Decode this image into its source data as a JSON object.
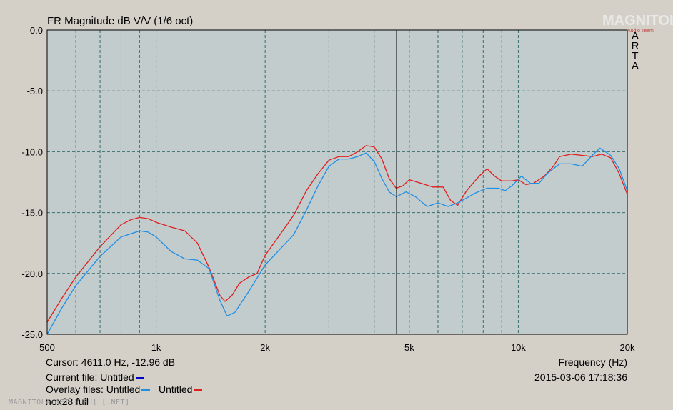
{
  "title": "FR Magnitude dB V/V (1/6 oct)",
  "side_label": [
    "A",
    "R",
    "T",
    "A"
  ],
  "logo": "MAGNITOLA",
  "logo_sub": "Audio Team",
  "watermark": "MAGNITOLA.NET [.RU] [.NET]",
  "info": {
    "cursor": "Cursor: 4611.0 Hz, -12.96 dB",
    "current_file_label": "Current file: Untitled",
    "overlay_label": "Overlay files: Untitled",
    "overlay_second": "Untitled",
    "file_note": "nox28 full",
    "freq_label": "Frequency (Hz)",
    "timestamp": "2015-03-06  17:18:36"
  },
  "colors": {
    "plot_bg": "#c2cccc",
    "grid": "#3a6e6e",
    "current_swatch": "#0000cc",
    "series_blue": "#1f8ee6",
    "series_red": "#e01e1e"
  },
  "chart_data": {
    "type": "line",
    "x_scale": "log",
    "xlim": [
      500,
      20000
    ],
    "ylim": [
      -25,
      0
    ],
    "xlabel": "Frequency (Hz)",
    "ylabel": "",
    "y_ticks": [
      "0.0",
      "-5.0",
      "-10.0",
      "-15.0",
      "-20.0",
      "-25.0"
    ],
    "x_ticks": [
      {
        "value": 500,
        "label": "500"
      },
      {
        "value": 1000,
        "label": "1k"
      },
      {
        "value": 2000,
        "label": "2k"
      },
      {
        "value": 5000,
        "label": "5k"
      },
      {
        "value": 10000,
        "label": "10k"
      },
      {
        "value": 20000,
        "label": "20k"
      }
    ],
    "cursor_x": 4611,
    "series": [
      {
        "color": "#e01e1e",
        "points": [
          [
            500,
            -24.0
          ],
          [
            550,
            -22.0
          ],
          [
            600,
            -20.3
          ],
          [
            700,
            -17.8
          ],
          [
            800,
            -16.0
          ],
          [
            850,
            -15.6
          ],
          [
            900,
            -15.4
          ],
          [
            950,
            -15.5
          ],
          [
            1000,
            -15.8
          ],
          [
            1100,
            -16.2
          ],
          [
            1200,
            -16.5
          ],
          [
            1300,
            -17.5
          ],
          [
            1400,
            -19.5
          ],
          [
            1500,
            -21.8
          ],
          [
            1550,
            -22.3
          ],
          [
            1620,
            -21.8
          ],
          [
            1700,
            -20.8
          ],
          [
            1800,
            -20.3
          ],
          [
            1900,
            -20.0
          ],
          [
            2000,
            -18.5
          ],
          [
            2200,
            -16.8
          ],
          [
            2400,
            -15.2
          ],
          [
            2600,
            -13.2
          ],
          [
            2800,
            -11.8
          ],
          [
            3000,
            -10.7
          ],
          [
            3200,
            -10.4
          ],
          [
            3400,
            -10.4
          ],
          [
            3600,
            -10.0
          ],
          [
            3800,
            -9.5
          ],
          [
            4000,
            -9.6
          ],
          [
            4200,
            -10.6
          ],
          [
            4400,
            -12.2
          ],
          [
            4600,
            -13.0
          ],
          [
            4800,
            -12.8
          ],
          [
            5000,
            -12.3
          ],
          [
            5400,
            -12.6
          ],
          [
            5800,
            -12.9
          ],
          [
            6200,
            -12.9
          ],
          [
            6500,
            -14.0
          ],
          [
            6800,
            -14.4
          ],
          [
            7200,
            -13.2
          ],
          [
            7800,
            -12.0
          ],
          [
            8200,
            -11.4
          ],
          [
            8600,
            -12.0
          ],
          [
            9000,
            -12.4
          ],
          [
            9600,
            -12.4
          ],
          [
            10000,
            -12.3
          ],
          [
            10500,
            -12.7
          ],
          [
            11000,
            -12.6
          ],
          [
            11800,
            -12.0
          ],
          [
            12500,
            -11.2
          ],
          [
            13000,
            -10.4
          ],
          [
            14000,
            -10.2
          ],
          [
            15000,
            -10.3
          ],
          [
            16000,
            -10.4
          ],
          [
            17000,
            -10.2
          ],
          [
            18000,
            -10.5
          ],
          [
            19000,
            -11.8
          ],
          [
            20000,
            -13.5
          ]
        ]
      },
      {
        "color": "#1f8ee6",
        "points": [
          [
            500,
            -25.0
          ],
          [
            550,
            -22.8
          ],
          [
            600,
            -21.0
          ],
          [
            700,
            -18.6
          ],
          [
            800,
            -17.0
          ],
          [
            900,
            -16.5
          ],
          [
            950,
            -16.6
          ],
          [
            1000,
            -17.0
          ],
          [
            1100,
            -18.2
          ],
          [
            1200,
            -18.8
          ],
          [
            1300,
            -18.9
          ],
          [
            1400,
            -19.6
          ],
          [
            1500,
            -22.2
          ],
          [
            1570,
            -23.5
          ],
          [
            1650,
            -23.2
          ],
          [
            1800,
            -21.5
          ],
          [
            2000,
            -19.3
          ],
          [
            2200,
            -18.0
          ],
          [
            2400,
            -16.8
          ],
          [
            2600,
            -14.8
          ],
          [
            2800,
            -12.8
          ],
          [
            3000,
            -11.2
          ],
          [
            3200,
            -10.6
          ],
          [
            3400,
            -10.6
          ],
          [
            3600,
            -10.4
          ],
          [
            3800,
            -10.1
          ],
          [
            4000,
            -10.8
          ],
          [
            4200,
            -12.2
          ],
          [
            4400,
            -13.3
          ],
          [
            4600,
            -13.7
          ],
          [
            4900,
            -13.3
          ],
          [
            5200,
            -13.7
          ],
          [
            5600,
            -14.5
          ],
          [
            6000,
            -14.2
          ],
          [
            6400,
            -14.5
          ],
          [
            6800,
            -14.2
          ],
          [
            7200,
            -13.8
          ],
          [
            7600,
            -13.4
          ],
          [
            8200,
            -13.0
          ],
          [
            8800,
            -13.0
          ],
          [
            9200,
            -13.2
          ],
          [
            9600,
            -12.8
          ],
          [
            10200,
            -12.0
          ],
          [
            10800,
            -12.6
          ],
          [
            11400,
            -12.6
          ],
          [
            12000,
            -11.8
          ],
          [
            13000,
            -11.0
          ],
          [
            14000,
            -11.0
          ],
          [
            15000,
            -11.2
          ],
          [
            16000,
            -10.3
          ],
          [
            16800,
            -9.7
          ],
          [
            18000,
            -10.3
          ],
          [
            19000,
            -11.4
          ],
          [
            20000,
            -13.2
          ]
        ]
      }
    ]
  }
}
